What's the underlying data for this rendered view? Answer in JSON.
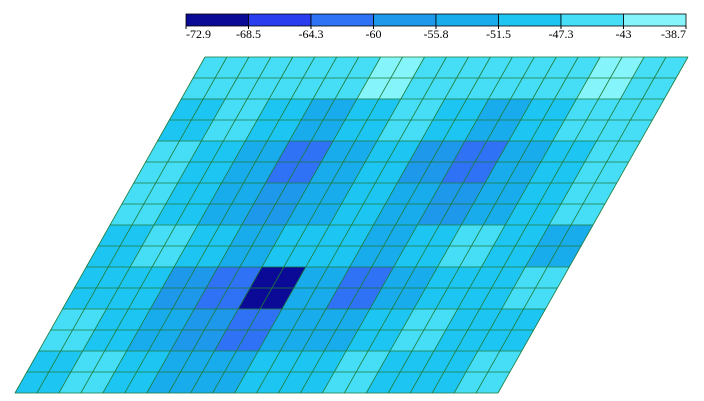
{
  "chart_data": {
    "type": "contour",
    "legend_ticks": [
      -72.9,
      -68.5,
      -64.3,
      -60,
      -55.8,
      -51.5,
      -47.3,
      -43,
      -38.7
    ],
    "colors": [
      "#0a0a96",
      "#2a3ef0",
      "#2f72f6",
      "#1d98ea",
      "#18acec",
      "#1dc6f2",
      "#46def6",
      "#86f5fb"
    ],
    "values": [
      [
        -46,
        -44,
        -47,
        -45,
        -43,
        -46,
        -44,
        -47,
        -45,
        -43,
        -46
      ],
      [
        -49,
        -45,
        -50,
        -52,
        -49,
        -47,
        -50,
        -52,
        -48,
        -44,
        -47
      ],
      [
        -47,
        -50,
        -55,
        -64,
        -55,
        -51,
        -56,
        -63,
        -53,
        -48,
        -45
      ],
      [
        -44,
        -48,
        -53,
        -59,
        -54,
        -50,
        -55,
        -58,
        -52,
        -49,
        -47
      ],
      [
        -50,
        -46,
        -51,
        -53,
        -51,
        -49,
        -52,
        -51,
        -47,
        -50,
        -52
      ],
      [
        -48,
        -49,
        -56,
        -62,
        -72,
        -54,
        -61,
        -52,
        -48,
        -51,
        -46
      ],
      [
        -45,
        -50,
        -53,
        -58,
        -61,
        -52,
        -54,
        -50,
        -46,
        -49,
        -50
      ],
      [
        -49,
        -47,
        -51,
        -53,
        -52,
        -50,
        -49,
        -47,
        -50,
        -48,
        -45
      ]
    ]
  }
}
